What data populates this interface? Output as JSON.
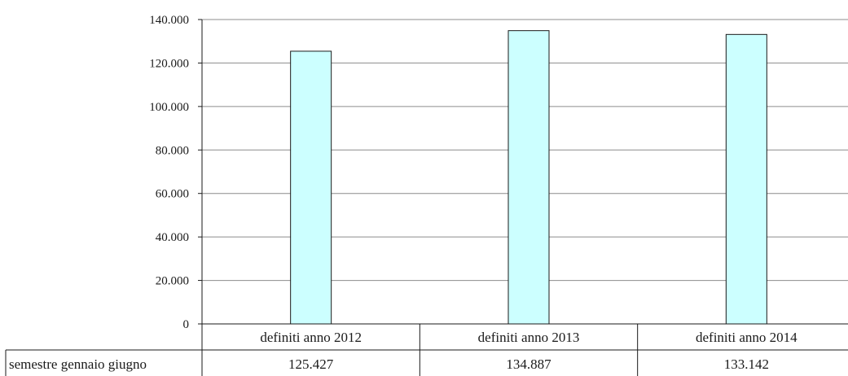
{
  "chart_data": {
    "type": "bar",
    "categories": [
      "definiti anno 2012",
      "definiti anno 2013",
      "definiti anno 2014"
    ],
    "series": [
      {
        "name": "semestre gennaio giugno",
        "values": [
          125427,
          134887,
          133142
        ],
        "value_labels": [
          "125.427",
          "134.887",
          "133.142"
        ],
        "color": "#ccffff"
      }
    ],
    "y_ticks": [
      {
        "value": 0,
        "label": "0"
      },
      {
        "value": 20000,
        "label": "20.000"
      },
      {
        "value": 40000,
        "label": "40.000"
      },
      {
        "value": 60000,
        "label": "60.000"
      },
      {
        "value": 80000,
        "label": "80.000"
      },
      {
        "value": 100000,
        "label": "100.000"
      },
      {
        "value": 120000,
        "label": "120.000"
      },
      {
        "value": 140000,
        "label": "140.000"
      }
    ],
    "ylim": [
      0,
      140000
    ],
    "grid": true,
    "data_table": true,
    "title": "",
    "xlabel": "",
    "ylabel": ""
  }
}
